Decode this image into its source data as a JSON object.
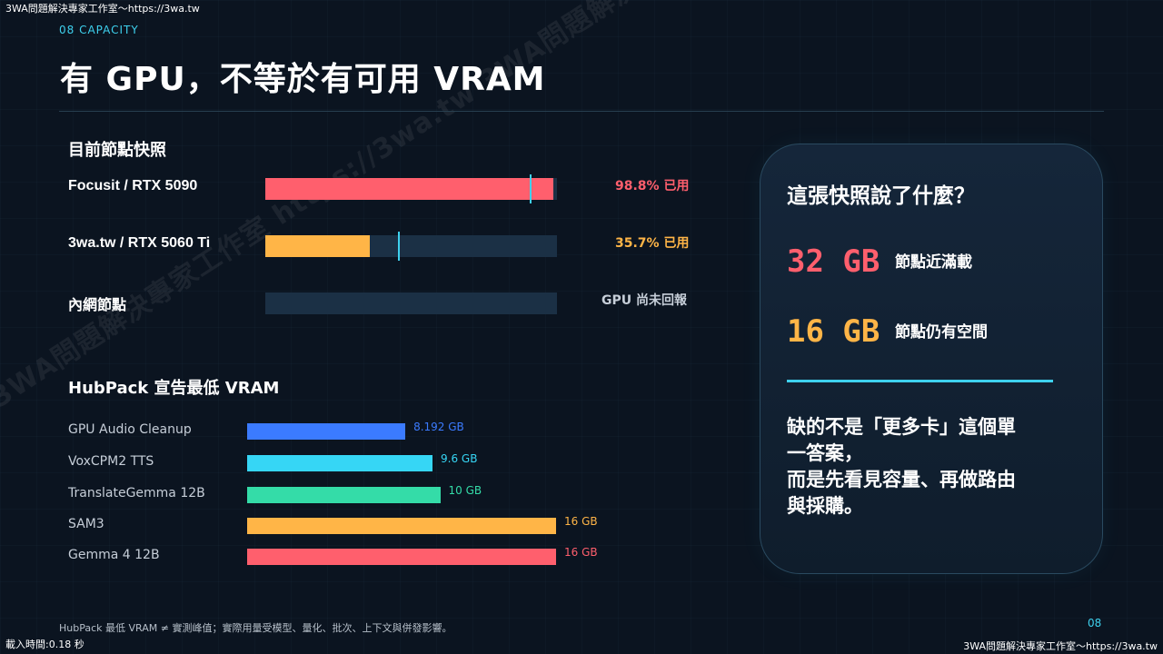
{
  "overlay": {
    "top_watermark": "3WA問題解決專家工作室～https://3wa.tw",
    "bottom_watermark": "3WA問題解決專家工作室～https://3wa.tw",
    "load_time": "載入時間:0.18 秒",
    "diagonal_watermark": "3WA問題解決專家工作室 https://3wa.tw 3WA問題解決專家工作室 https://3wa.tw 3WA問題解決"
  },
  "header": {
    "section_tag": "08 CAPACITY",
    "title": "有 GPU，不等於有可用 VRAM"
  },
  "snapshot": {
    "heading": "目前節點快照",
    "nodes": [
      {
        "label": "Focusit / RTX 5090",
        "usage_text": "98.8% 已用",
        "usage_percent": 98.8,
        "marker_percent": 90.5,
        "color": "#ff5f6d"
      },
      {
        "label": "3wa.tw / RTX 5060 Ti",
        "usage_text": "35.7% 已用",
        "usage_percent": 35.7,
        "marker_percent": 45.5,
        "color": "#ffb547"
      },
      {
        "label": "內網節點",
        "usage_text": "GPU 尚未回報",
        "usage_percent": 0,
        "color": "#c6ced8"
      }
    ]
  },
  "hubpack": {
    "heading": "HubPack 宣告最低 VRAM",
    "max_gb": 16,
    "items": [
      {
        "label": "GPU Audio Cleanup",
        "value_text": "8.192 GB",
        "gb": 8.192,
        "color": "#3b7bff"
      },
      {
        "label": "VoxCPM2 TTS",
        "value_text": "9.6 GB",
        "gb": 9.6,
        "color": "#36d6f5"
      },
      {
        "label": "TranslateGemma 12B",
        "value_text": "10 GB",
        "gb": 10,
        "color": "#34dca8"
      },
      {
        "label": "SAM3",
        "value_text": "16 GB",
        "gb": 16,
        "color": "#ffb547"
      },
      {
        "label": "Gemma 4 12B",
        "value_text": "16 GB",
        "gb": 16,
        "color": "#ff5f6d"
      }
    ]
  },
  "card": {
    "title": "這張快照說了什麼？",
    "stats": [
      {
        "value": "32 GB",
        "desc": "節點近滿載",
        "color": "#ff5f6d"
      },
      {
        "value": "16 GB",
        "desc": "節點仍有空間",
        "color": "#ffb547"
      }
    ],
    "note_lines": [
      "缺的不是「更多卡」這個單",
      "一答案，",
      "而是先看見容量、再做路由",
      "與採購。"
    ]
  },
  "footer": {
    "footnote": "HubPack 最低 VRAM ≠ 實測峰值；實際用量受模型、量化、批次、上下文與併發影響。",
    "page_number": "08"
  }
}
